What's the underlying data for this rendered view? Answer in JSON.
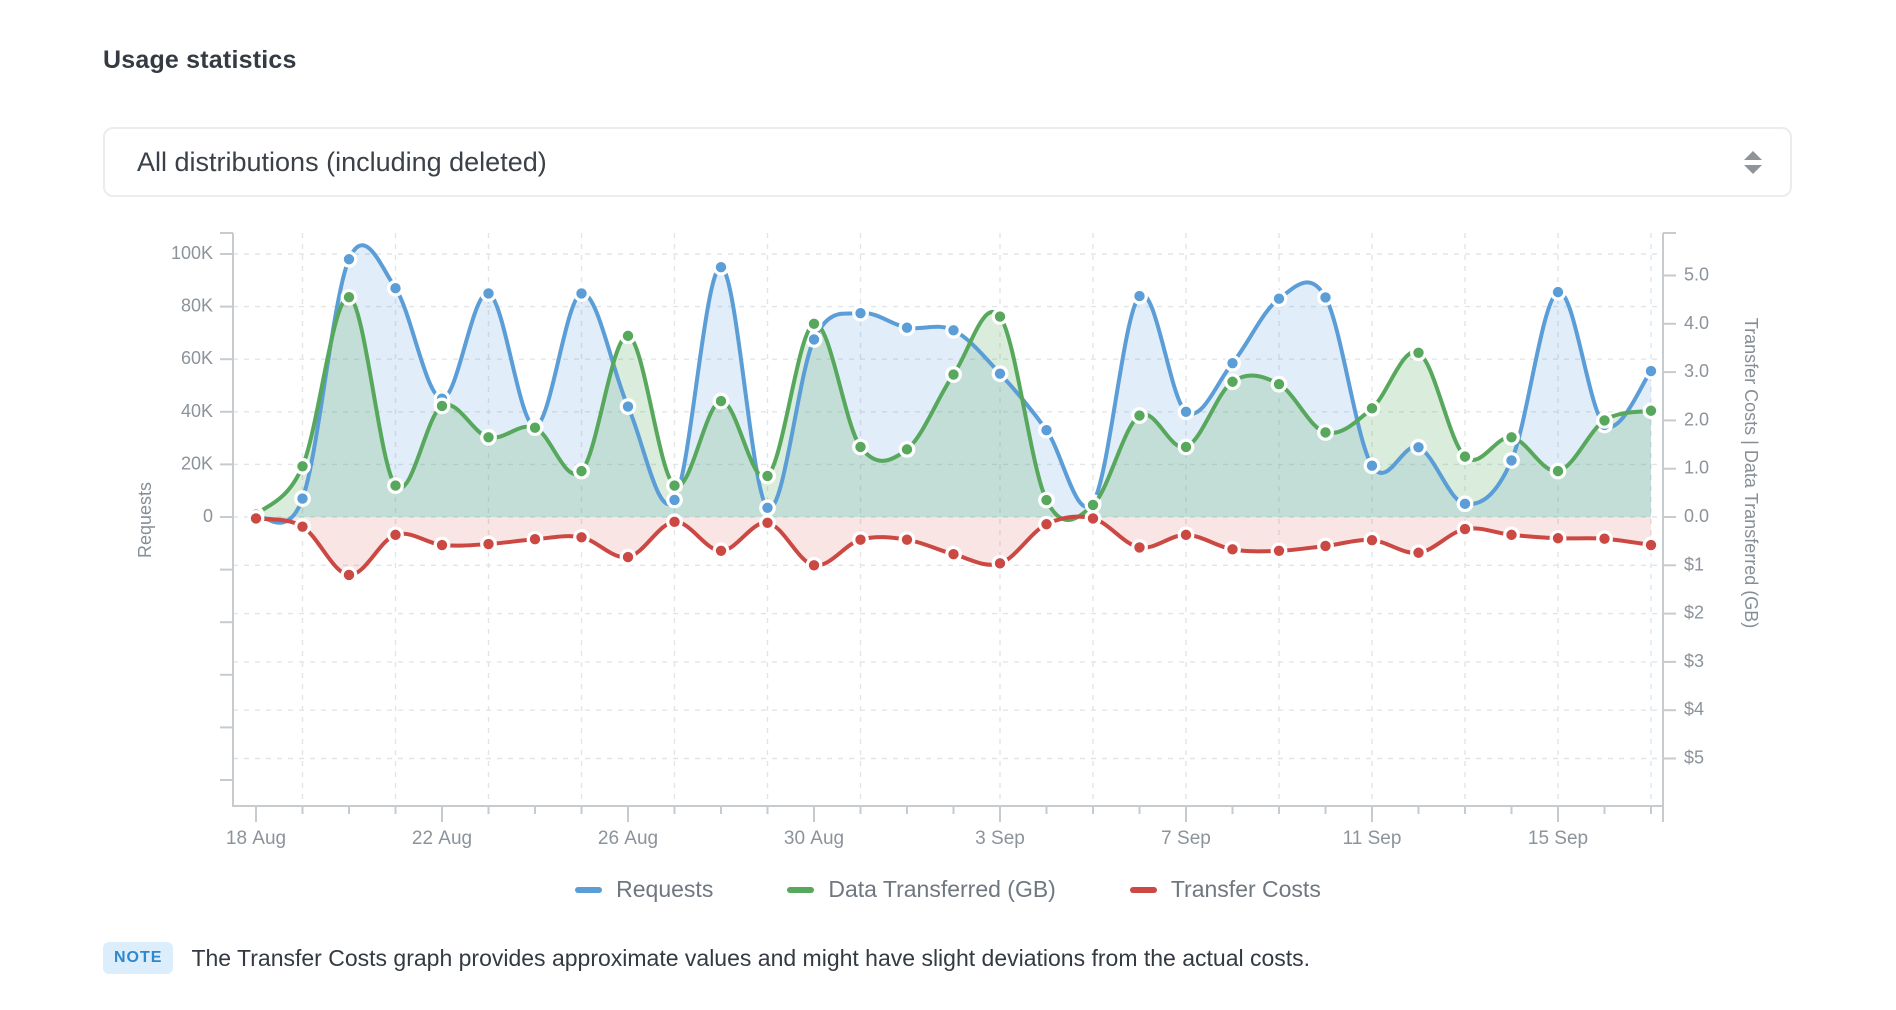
{
  "page": {
    "title": "Usage statistics"
  },
  "filter": {
    "selected": "All distributions (including deleted)"
  },
  "chart_data": {
    "type": "line",
    "x": [
      "18 Aug",
      "19 Aug",
      "20 Aug",
      "21 Aug",
      "22 Aug",
      "23 Aug",
      "24 Aug",
      "25 Aug",
      "26 Aug",
      "27 Aug",
      "28 Aug",
      "29 Aug",
      "30 Aug",
      "31 Aug",
      "1 Sep",
      "2 Sep",
      "3 Sep",
      "4 Sep",
      "5 Sep",
      "6 Sep",
      "7 Sep",
      "8 Sep",
      "9 Sep",
      "10 Sep",
      "11 Sep",
      "12 Sep",
      "13 Sep",
      "14 Sep",
      "15 Sep",
      "16 Sep",
      "17 Sep"
    ],
    "x_tick_labels": [
      "18 Aug",
      "22 Aug",
      "26 Aug",
      "30 Aug",
      "3 Sep",
      "7 Sep",
      "11 Sep",
      "15 Sep"
    ],
    "x_tick_indices": [
      0,
      4,
      8,
      12,
      16,
      20,
      24,
      28
    ],
    "grid_day_indices": [
      1,
      3,
      5,
      7,
      9,
      11,
      13,
      16,
      18,
      20,
      22,
      24,
      26,
      28,
      30
    ],
    "left_axis": {
      "title": "Requests",
      "tick_labels": [
        "100K",
        "80K",
        "60K",
        "40K",
        "20K",
        "0"
      ],
      "tick_values": [
        100000,
        80000,
        60000,
        40000,
        20000,
        0
      ]
    },
    "right_axis": {
      "title": "Transfer Costs | Data Transferred (GB)",
      "gb_tick_labels": [
        "5.0",
        "4.0",
        "3.0",
        "2.0",
        "1.0",
        "0.0"
      ],
      "gb_tick_values": [
        5,
        4,
        3,
        2,
        1,
        0
      ],
      "cost_tick_labels": [
        "$1",
        "$2",
        "$3",
        "$4",
        "$5"
      ],
      "cost_tick_values": [
        1,
        2,
        3,
        4,
        5
      ]
    },
    "series": [
      {
        "name": "Requests",
        "axis": "requests",
        "color": "#5b9dd6",
        "fill": "rgba(91,157,214,0.18)",
        "values": [
          500,
          7000,
          98000,
          87000,
          45000,
          85000,
          34500,
          85000,
          42000,
          6500,
          95000,
          3500,
          67500,
          77500,
          72000,
          71000,
          54500,
          33000,
          5500,
          84000,
          40000,
          58500,
          83000,
          83500,
          19500,
          26500,
          5000,
          21500,
          85500,
          35000,
          55500
        ]
      },
      {
        "name": "Data Transferred (GB)",
        "axis": "gb",
        "color": "#57a85c",
        "fill": "rgba(87,168,92,0.22)",
        "values": [
          0.05,
          1.05,
          4.55,
          0.65,
          2.3,
          1.65,
          1.85,
          0.95,
          3.75,
          0.65,
          2.4,
          0.85,
          4.0,
          1.45,
          1.4,
          2.95,
          4.15,
          0.35,
          0.25,
          2.1,
          1.45,
          2.8,
          2.75,
          1.75,
          2.25,
          3.4,
          1.25,
          1.65,
          0.95,
          2.0,
          2.2
        ]
      },
      {
        "name": "Transfer Costs",
        "axis": "cost",
        "color": "#cb4843",
        "fill": "rgba(203,72,67,0.14)",
        "values": [
          0.03,
          0.2,
          1.2,
          0.37,
          0.58,
          0.56,
          0.46,
          0.42,
          0.83,
          0.1,
          0.7,
          0.12,
          1.0,
          0.47,
          0.47,
          0.77,
          0.96,
          0.15,
          0.03,
          0.63,
          0.37,
          0.67,
          0.7,
          0.6,
          0.48,
          0.74,
          0.25,
          0.37,
          0.44,
          0.45,
          0.58
        ]
      }
    ]
  },
  "note": {
    "badge": "NOTE",
    "text": "The Transfer Costs graph provides approximate values and might have slight deviations from the actual costs."
  }
}
